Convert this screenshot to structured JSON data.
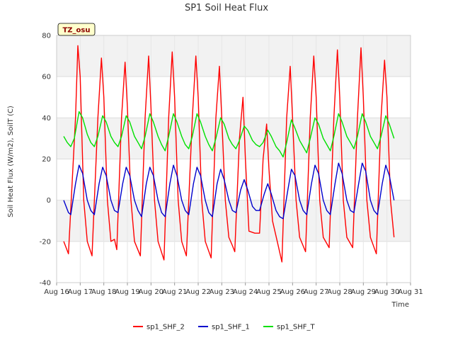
{
  "chart_data": {
    "type": "line",
    "title": "SP1 Soil Heat Flux",
    "xlabel": "Time",
    "ylabel": "Soil Heat Flux (W/m2), SoilT (C)",
    "badge": "TZ_osu",
    "xlim": [
      16,
      31
    ],
    "ylim": [
      -40,
      80
    ],
    "x_ticks": [
      "Aug 16",
      "Aug 17",
      "Aug 18",
      "Aug 19",
      "Aug 20",
      "Aug 21",
      "Aug 22",
      "Aug 23",
      "Aug 24",
      "Aug 25",
      "Aug 26",
      "Aug 27",
      "Aug 28",
      "Aug 29",
      "Aug 30",
      "Aug 31"
    ],
    "y_ticks": [
      -40,
      -20,
      0,
      20,
      40,
      60,
      80
    ],
    "grid": true,
    "legend_position": "bottom",
    "series": [
      {
        "name": "sp1_SHF_2",
        "color": "#ff0000",
        "points": [
          [
            16.3,
            -20
          ],
          [
            16.5,
            -26
          ],
          [
            16.8,
            40
          ],
          [
            16.9,
            75
          ],
          [
            17.0,
            60
          ],
          [
            17.15,
            0
          ],
          [
            17.3,
            -20
          ],
          [
            17.5,
            -27
          ],
          [
            17.75,
            40
          ],
          [
            17.9,
            69
          ],
          [
            18.0,
            50
          ],
          [
            18.15,
            0
          ],
          [
            18.3,
            -20
          ],
          [
            18.45,
            -19
          ],
          [
            18.55,
            -24
          ],
          [
            18.75,
            40
          ],
          [
            18.9,
            67
          ],
          [
            19.0,
            45
          ],
          [
            19.15,
            0
          ],
          [
            19.3,
            -20
          ],
          [
            19.55,
            -27
          ],
          [
            19.75,
            40
          ],
          [
            19.9,
            70
          ],
          [
            20.0,
            45
          ],
          [
            20.15,
            0
          ],
          [
            20.3,
            -20
          ],
          [
            20.55,
            -29
          ],
          [
            20.75,
            40
          ],
          [
            20.9,
            72
          ],
          [
            21.0,
            50
          ],
          [
            21.15,
            0
          ],
          [
            21.3,
            -20
          ],
          [
            21.5,
            -27
          ],
          [
            21.75,
            40
          ],
          [
            21.9,
            70
          ],
          [
            22.0,
            50
          ],
          [
            22.15,
            0
          ],
          [
            22.3,
            -20
          ],
          [
            22.55,
            -28
          ],
          [
            22.75,
            40
          ],
          [
            22.9,
            65
          ],
          [
            23.0,
            40
          ],
          [
            23.15,
            0
          ],
          [
            23.3,
            -18
          ],
          [
            23.45,
            -22
          ],
          [
            23.55,
            -25
          ],
          [
            23.75,
            30
          ],
          [
            23.9,
            50
          ],
          [
            24.0,
            20
          ],
          [
            24.15,
            -15
          ],
          [
            24.4,
            -16
          ],
          [
            24.6,
            -16
          ],
          [
            24.75,
            20
          ],
          [
            24.9,
            37
          ],
          [
            25.0,
            15
          ],
          [
            25.15,
            -10
          ],
          [
            25.35,
            -20
          ],
          [
            25.55,
            -30
          ],
          [
            25.75,
            40
          ],
          [
            25.9,
            65
          ],
          [
            26.0,
            40
          ],
          [
            26.15,
            0
          ],
          [
            26.3,
            -18
          ],
          [
            26.55,
            -25
          ],
          [
            26.75,
            40
          ],
          [
            26.9,
            70
          ],
          [
            27.0,
            50
          ],
          [
            27.15,
            0
          ],
          [
            27.3,
            -18
          ],
          [
            27.55,
            -23
          ],
          [
            27.75,
            40
          ],
          [
            27.9,
            73
          ],
          [
            28.0,
            50
          ],
          [
            28.15,
            0
          ],
          [
            28.3,
            -18
          ],
          [
            28.55,
            -23
          ],
          [
            28.75,
            40
          ],
          [
            28.9,
            74
          ],
          [
            29.0,
            50
          ],
          [
            29.15,
            0
          ],
          [
            29.3,
            -18
          ],
          [
            29.55,
            -26
          ],
          [
            29.75,
            40
          ],
          [
            29.9,
            68
          ],
          [
            30.0,
            50
          ],
          [
            30.15,
            0
          ],
          [
            30.3,
            -18
          ]
        ]
      },
      {
        "name": "sp1_SHF_1",
        "color": "#0000cc",
        "points": [
          [
            16.3,
            0
          ],
          [
            16.5,
            -6
          ],
          [
            16.6,
            -7
          ],
          [
            16.8,
            8
          ],
          [
            16.95,
            17
          ],
          [
            17.1,
            13
          ],
          [
            17.3,
            0
          ],
          [
            17.45,
            -5
          ],
          [
            17.6,
            -7
          ],
          [
            17.8,
            8
          ],
          [
            17.95,
            16
          ],
          [
            18.1,
            12
          ],
          [
            18.3,
            0
          ],
          [
            18.45,
            -5
          ],
          [
            18.6,
            -6
          ],
          [
            18.8,
            8
          ],
          [
            18.95,
            16
          ],
          [
            19.1,
            12
          ],
          [
            19.3,
            0
          ],
          [
            19.45,
            -5
          ],
          [
            19.6,
            -8
          ],
          [
            19.8,
            8
          ],
          [
            19.95,
            16
          ],
          [
            20.1,
            12
          ],
          [
            20.3,
            0
          ],
          [
            20.45,
            -6
          ],
          [
            20.6,
            -8
          ],
          [
            20.8,
            8
          ],
          [
            20.95,
            17
          ],
          [
            21.1,
            12
          ],
          [
            21.3,
            0
          ],
          [
            21.45,
            -5
          ],
          [
            21.6,
            -7
          ],
          [
            21.8,
            8
          ],
          [
            21.95,
            16
          ],
          [
            22.1,
            12
          ],
          [
            22.3,
            0
          ],
          [
            22.45,
            -6
          ],
          [
            22.6,
            -8
          ],
          [
            22.8,
            8
          ],
          [
            22.95,
            15
          ],
          [
            23.1,
            10
          ],
          [
            23.3,
            0
          ],
          [
            23.45,
            -5
          ],
          [
            23.6,
            -6
          ],
          [
            23.8,
            5
          ],
          [
            23.95,
            10
          ],
          [
            24.1,
            5
          ],
          [
            24.3,
            -3
          ],
          [
            24.45,
            -5
          ],
          [
            24.6,
            -5
          ],
          [
            24.8,
            3
          ],
          [
            24.95,
            8
          ],
          [
            25.1,
            3
          ],
          [
            25.3,
            -5
          ],
          [
            25.45,
            -8
          ],
          [
            25.6,
            -9
          ],
          [
            25.8,
            5
          ],
          [
            25.95,
            15
          ],
          [
            26.1,
            12
          ],
          [
            26.3,
            0
          ],
          [
            26.45,
            -5
          ],
          [
            26.6,
            -7
          ],
          [
            26.8,
            8
          ],
          [
            26.95,
            17
          ],
          [
            27.1,
            13
          ],
          [
            27.3,
            0
          ],
          [
            27.45,
            -5
          ],
          [
            27.6,
            -7
          ],
          [
            27.8,
            8
          ],
          [
            27.95,
            18
          ],
          [
            28.1,
            13
          ],
          [
            28.3,
            0
          ],
          [
            28.45,
            -5
          ],
          [
            28.6,
            -6
          ],
          [
            28.8,
            8
          ],
          [
            28.95,
            18
          ],
          [
            29.1,
            14
          ],
          [
            29.3,
            0
          ],
          [
            29.45,
            -5
          ],
          [
            29.6,
            -7
          ],
          [
            29.8,
            8
          ],
          [
            29.95,
            17
          ],
          [
            30.1,
            12
          ],
          [
            30.3,
            0
          ]
        ]
      },
      {
        "name": "sp1_SHF_T",
        "color": "#00e000",
        "points": [
          [
            16.3,
            31
          ],
          [
            16.45,
            28
          ],
          [
            16.6,
            26
          ],
          [
            16.75,
            30
          ],
          [
            16.95,
            43
          ],
          [
            17.1,
            40
          ],
          [
            17.3,
            32
          ],
          [
            17.45,
            28
          ],
          [
            17.6,
            26
          ],
          [
            17.75,
            31
          ],
          [
            17.95,
            41
          ],
          [
            18.1,
            38
          ],
          [
            18.3,
            31
          ],
          [
            18.45,
            28
          ],
          [
            18.6,
            26
          ],
          [
            18.75,
            31
          ],
          [
            18.95,
            41
          ],
          [
            19.1,
            38
          ],
          [
            19.3,
            31
          ],
          [
            19.45,
            28
          ],
          [
            19.6,
            25
          ],
          [
            19.75,
            31
          ],
          [
            19.95,
            42
          ],
          [
            20.1,
            38
          ],
          [
            20.3,
            31
          ],
          [
            20.45,
            27
          ],
          [
            20.6,
            24
          ],
          [
            20.75,
            31
          ],
          [
            20.95,
            42
          ],
          [
            21.1,
            38
          ],
          [
            21.3,
            31
          ],
          [
            21.45,
            27
          ],
          [
            21.6,
            25
          ],
          [
            21.75,
            31
          ],
          [
            21.95,
            42
          ],
          [
            22.1,
            38
          ],
          [
            22.3,
            31
          ],
          [
            22.45,
            27
          ],
          [
            22.6,
            24
          ],
          [
            22.75,
            30
          ],
          [
            22.95,
            40
          ],
          [
            23.1,
            37
          ],
          [
            23.3,
            30
          ],
          [
            23.45,
            27
          ],
          [
            23.6,
            25
          ],
          [
            23.75,
            29
          ],
          [
            23.95,
            36
          ],
          [
            24.1,
            34
          ],
          [
            24.3,
            29
          ],
          [
            24.45,
            27
          ],
          [
            24.6,
            26
          ],
          [
            24.75,
            28
          ],
          [
            24.95,
            34
          ],
          [
            25.1,
            31
          ],
          [
            25.3,
            26
          ],
          [
            25.45,
            24
          ],
          [
            25.6,
            21
          ],
          [
            25.75,
            28
          ],
          [
            25.95,
            39
          ],
          [
            26.1,
            35
          ],
          [
            26.3,
            29
          ],
          [
            26.45,
            26
          ],
          [
            26.6,
            23
          ],
          [
            26.75,
            30
          ],
          [
            26.95,
            40
          ],
          [
            27.1,
            37
          ],
          [
            27.3,
            30
          ],
          [
            27.45,
            27
          ],
          [
            27.6,
            24
          ],
          [
            27.75,
            31
          ],
          [
            27.95,
            42
          ],
          [
            28.1,
            38
          ],
          [
            28.3,
            31
          ],
          [
            28.45,
            28
          ],
          [
            28.6,
            25
          ],
          [
            28.75,
            31
          ],
          [
            28.95,
            42
          ],
          [
            29.1,
            38
          ],
          [
            29.3,
            31
          ],
          [
            29.45,
            28
          ],
          [
            29.6,
            25
          ],
          [
            29.75,
            31
          ],
          [
            29.95,
            41
          ],
          [
            30.1,
            37
          ],
          [
            30.3,
            30
          ]
        ]
      }
    ]
  }
}
